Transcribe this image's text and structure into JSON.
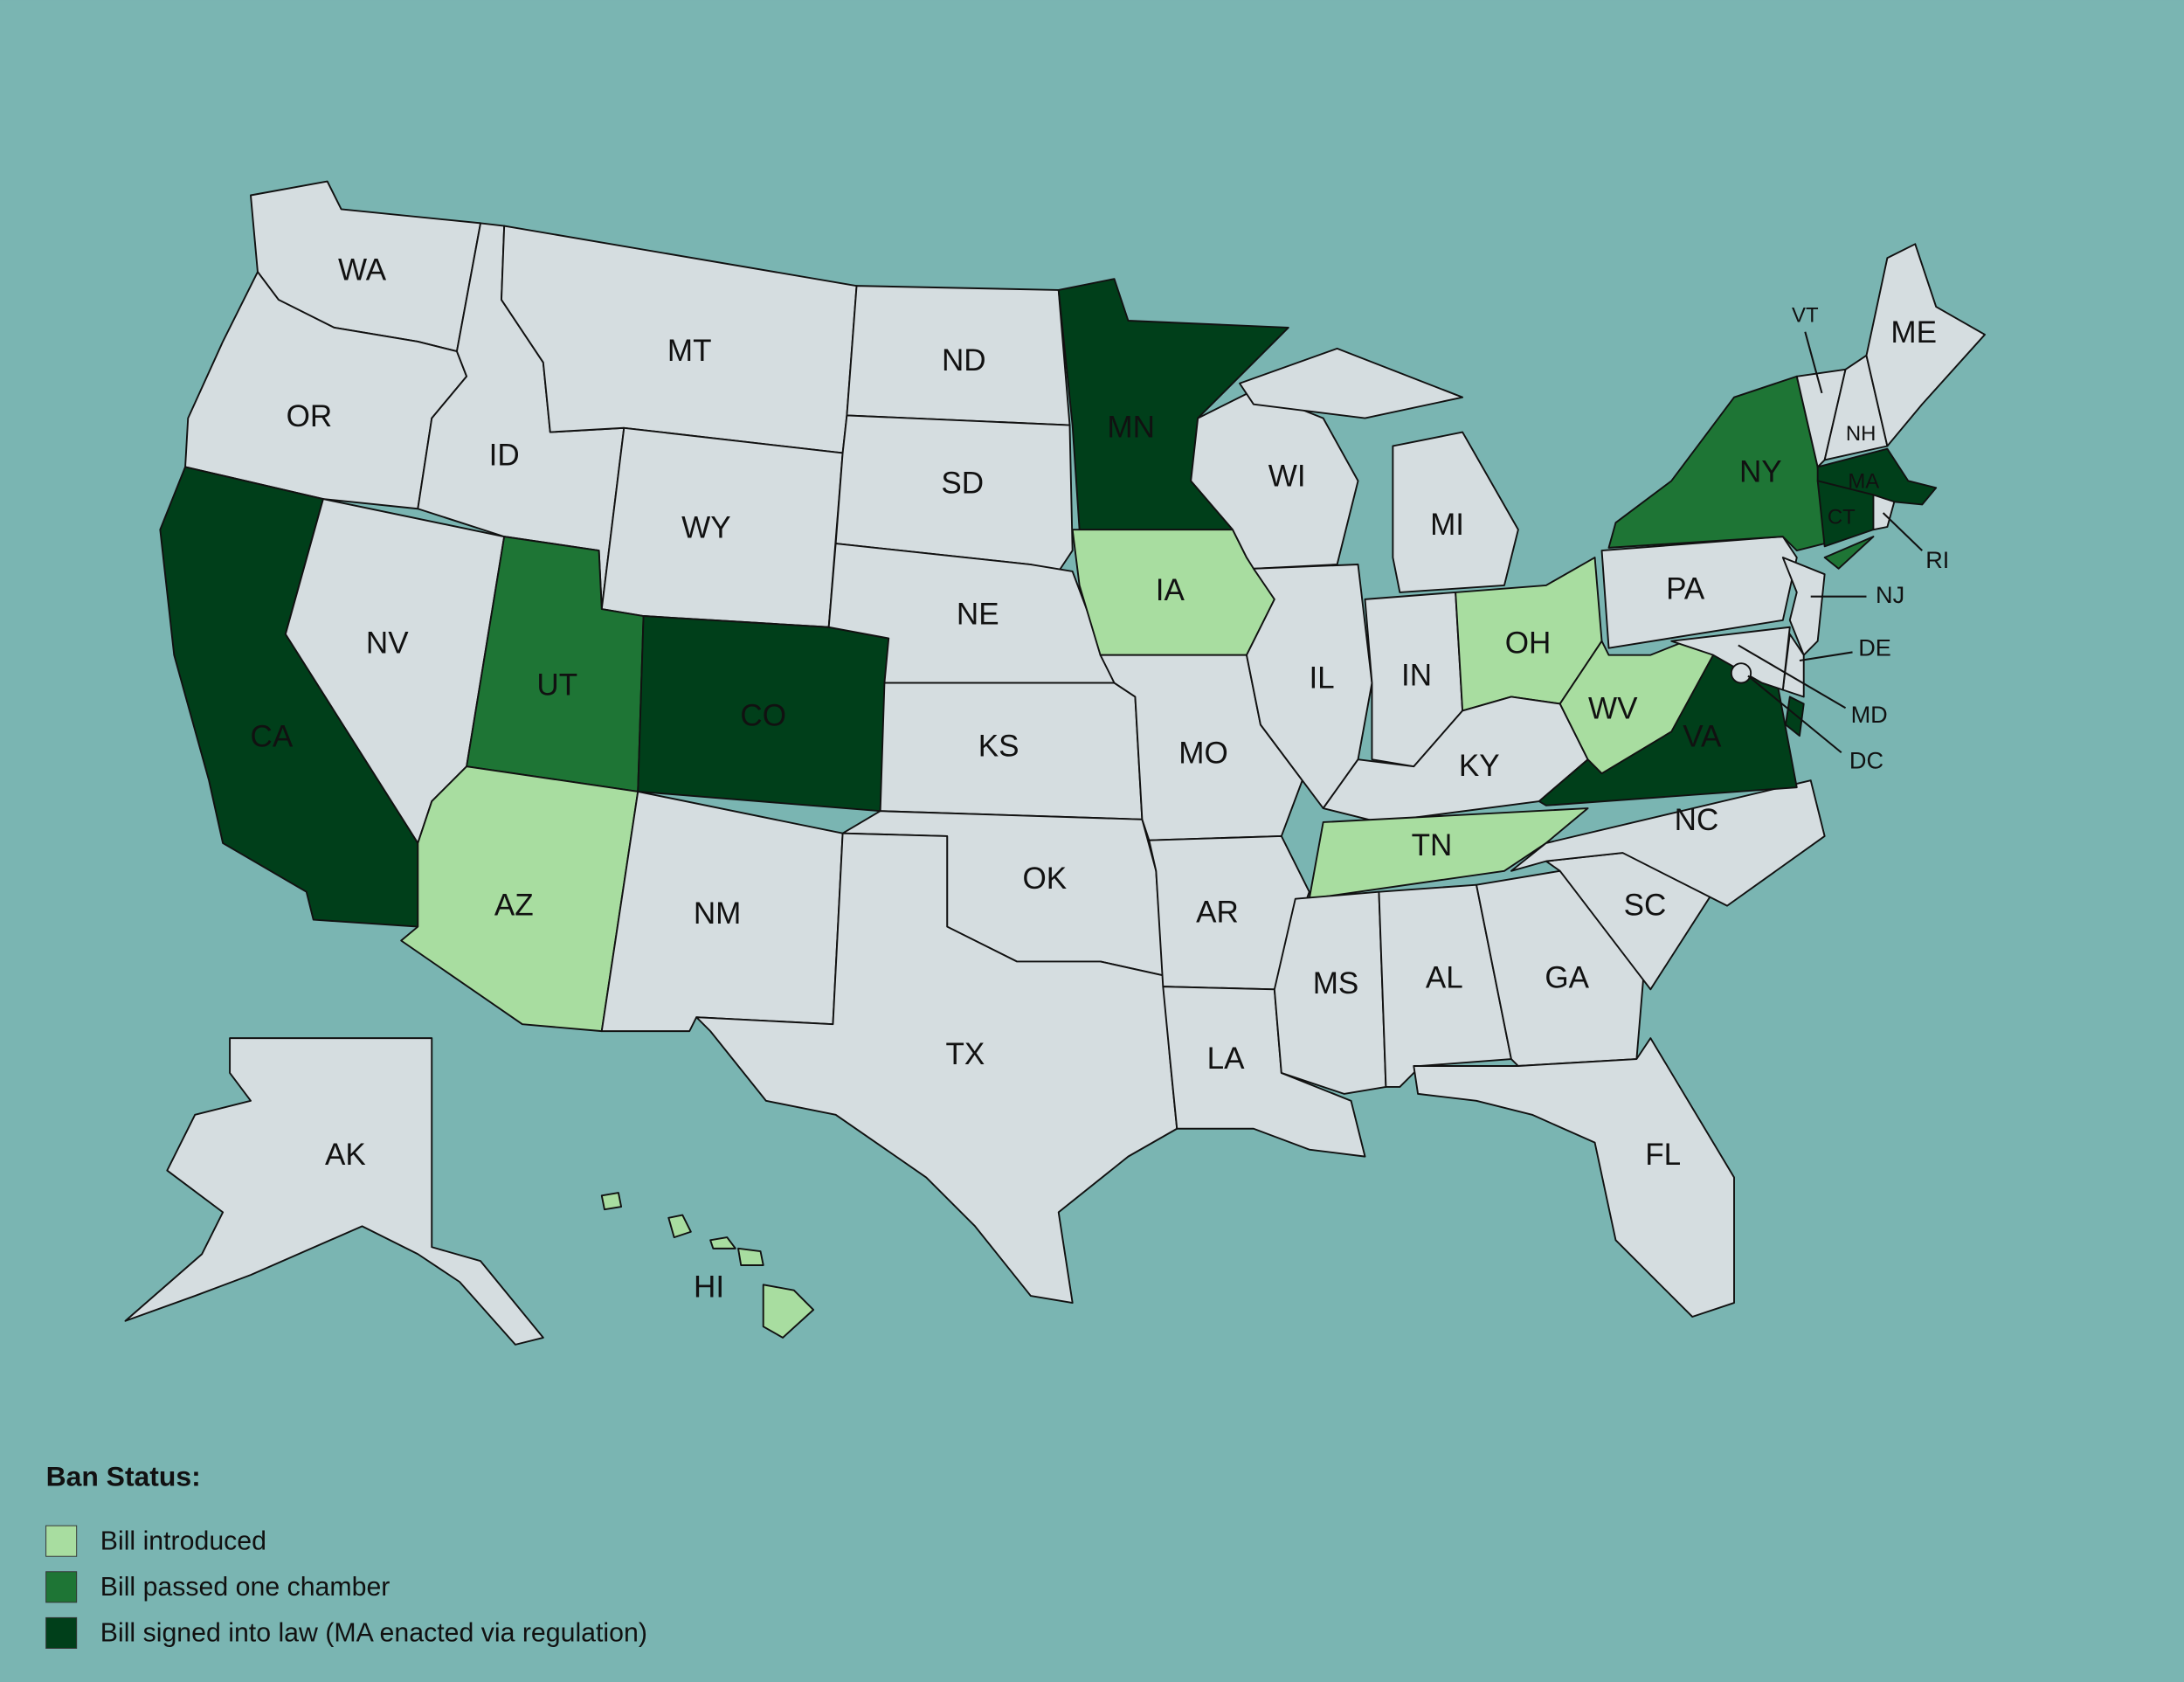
{
  "states": [
    {
      "label": "WA",
      "color": "#d5dde0"
    },
    {
      "label": "OR",
      "color": "#d5dde0"
    },
    {
      "label": "CA",
      "color": "#003f1a"
    },
    {
      "label": "NV",
      "color": "#d5dde0"
    },
    {
      "label": "ID",
      "color": "#d5dde0"
    },
    {
      "label": "MT",
      "color": "#d5dde0"
    },
    {
      "label": "WY",
      "color": "#d5dde0"
    },
    {
      "label": "UT",
      "color": "#1e7535"
    },
    {
      "label": "CO",
      "color": "#003f1a"
    },
    {
      "label": "AZ",
      "color": "#a8dda0"
    },
    {
      "label": "NM",
      "color": "#d5dde0"
    },
    {
      "label": "ND",
      "color": "#d5dde0"
    },
    {
      "label": "SD",
      "color": "#d5dde0"
    },
    {
      "label": "NE",
      "color": "#d5dde0"
    },
    {
      "label": "KS",
      "color": "#d5dde0"
    },
    {
      "label": "OK",
      "color": "#d5dde0"
    },
    {
      "label": "TX",
      "color": "#d5dde0"
    },
    {
      "label": "MN",
      "color": "#003f1a"
    },
    {
      "label": "IA",
      "color": "#a8dda0"
    },
    {
      "label": "MO",
      "color": "#d5dde0"
    },
    {
      "label": "AR",
      "color": "#d5dde0"
    },
    {
      "label": "LA",
      "color": "#d5dde0"
    },
    {
      "label": "WI",
      "color": "#d5dde0"
    },
    {
      "label": "IL",
      "color": "#d5dde0"
    },
    {
      "label": "IN",
      "color": "#d5dde0"
    },
    {
      "label": "MI",
      "color": "#d5dde0"
    },
    {
      "label": "OH",
      "color": "#a8dda0"
    },
    {
      "label": "KY",
      "color": "#d5dde0"
    },
    {
      "label": "TN",
      "color": "#a8dda0"
    },
    {
      "label": "MS",
      "color": "#d5dde0"
    },
    {
      "label": "AL",
      "color": "#d5dde0"
    },
    {
      "label": "GA",
      "color": "#d5dde0"
    },
    {
      "label": "FL",
      "color": "#d5dde0"
    },
    {
      "label": "SC",
      "color": "#d5dde0"
    },
    {
      "label": "NC",
      "color": "#d5dde0"
    },
    {
      "label": "VA",
      "color": "#003f1a"
    },
    {
      "label": "WV",
      "color": "#a8dda0"
    },
    {
      "label": "PA",
      "color": "#d5dde0"
    },
    {
      "label": "NY",
      "color": "#1e7535"
    },
    {
      "label": "VT",
      "color": "#d5dde0"
    },
    {
      "label": "NH",
      "color": "#d5dde0"
    },
    {
      "label": "ME",
      "color": "#d5dde0"
    },
    {
      "label": "MA",
      "color": "#003f1a"
    },
    {
      "label": "CT",
      "color": "#003f1a"
    },
    {
      "label": "RI",
      "color": "#d5dde0"
    },
    {
      "label": "NJ",
      "color": "#d5dde0"
    },
    {
      "label": "DE",
      "color": "#d5dde0"
    },
    {
      "label": "MD",
      "color": "#d5dde0"
    },
    {
      "label": "DC",
      "color": "#d5dde0"
    },
    {
      "label": "AK",
      "color": "#d5dde0"
    },
    {
      "label": "HI",
      "color": "#a8dda0"
    }
  ],
  "legend": {
    "title": "Ban Status:",
    "items": [
      {
        "label": "Bill introduced",
        "color": "#a8dda0"
      },
      {
        "label": "Bill passed one chamber",
        "color": "#1e7535"
      },
      {
        "label": "Bill signed into law (MA enacted via regulation)",
        "color": "#003f1a"
      }
    ]
  }
}
